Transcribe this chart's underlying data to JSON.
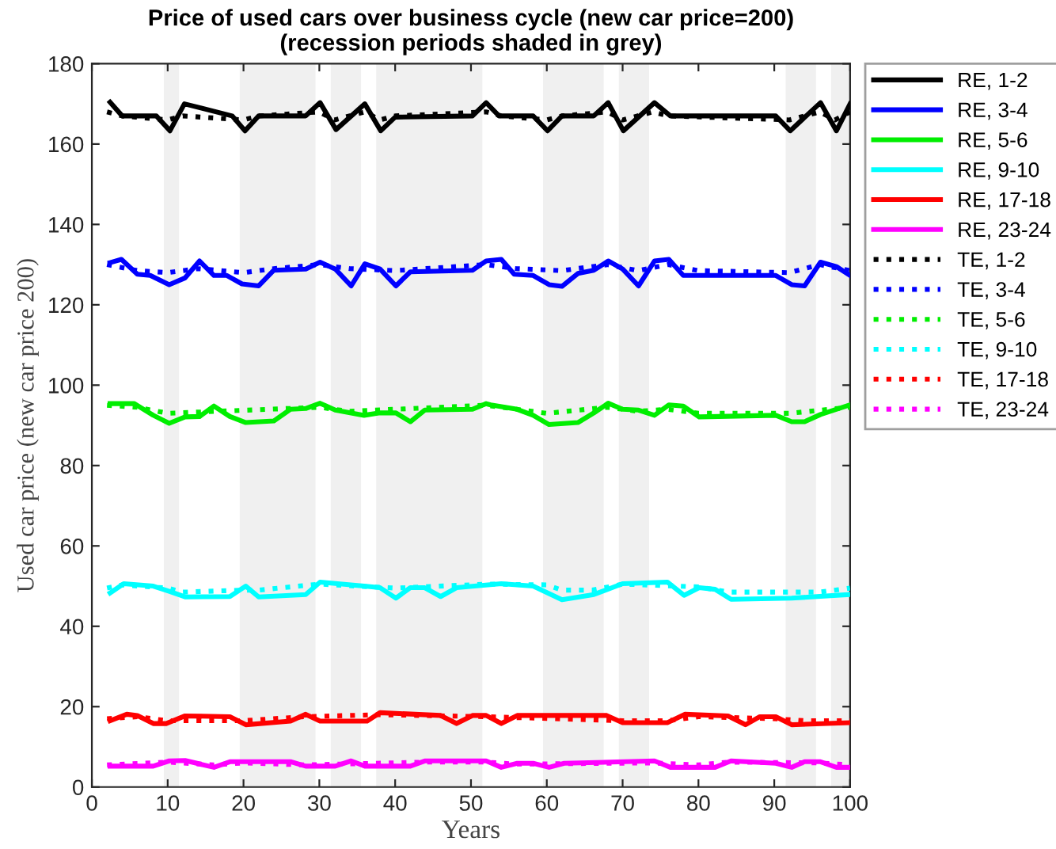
{
  "chart_data": {
    "type": "line",
    "title": "Price of used cars over business cycle (new car price=200)\n(recession periods shaded in grey)",
    "xlabel": "Years",
    "ylabel": "Used car price (new car price 200)",
    "xlim": [
      0,
      100
    ],
    "xticks": [
      0,
      10,
      20,
      30,
      40,
      50,
      60,
      70,
      80,
      90,
      100
    ],
    "ylim": [
      0,
      180
    ],
    "yticks": [
      0,
      20,
      40,
      60,
      80,
      100,
      120,
      140,
      160,
      180
    ],
    "grid": false,
    "legend": "top right",
    "marker": "none",
    "bands": [
      {
        "axis": "x",
        "from": 9.5,
        "to": 11.5,
        "color": "#f0f0f0"
      },
      {
        "axis": "x",
        "from": 19.5,
        "to": 29.5,
        "color": "#f0f0f0"
      },
      {
        "axis": "x",
        "from": 31.5,
        "to": 35.5,
        "color": "#f0f0f0"
      },
      {
        "axis": "x",
        "from": 37.5,
        "to": 51.5,
        "color": "#f0f0f0"
      },
      {
        "axis": "x",
        "from": 59.5,
        "to": 67.5,
        "color": "#f0f0f0"
      },
      {
        "axis": "x",
        "from": 69.5,
        "to": 73.5,
        "color": "#f0f0f0"
      },
      {
        "axis": "x",
        "from": 91.5,
        "to": 95.5,
        "color": "#f0f0f0"
      },
      {
        "axis": "x",
        "from": 97.5,
        "to": 100,
        "color": "#f0f0f0"
      }
    ],
    "series": [
      {
        "name": "RE, 1-2",
        "color": "#000000",
        "line_style": "solid",
        "x": [
          2.4,
          4,
          8.5,
          10.3,
          12.2,
          18.5,
          20.2,
          22,
          28.2,
          30.1,
          32.2,
          36,
          38.1,
          40,
          50.2,
          52,
          53.7,
          58.2,
          60.1,
          62,
          66.2,
          68.1,
          70.1,
          74.2,
          76.3,
          90.2,
          92.1,
          96.1,
          98.2,
          100
        ],
        "values": [
          170.4,
          167,
          167,
          163.3,
          170,
          167,
          163.3,
          167,
          167,
          170.3,
          163.6,
          170,
          163.3,
          166.7,
          167,
          170.3,
          167,
          167,
          163.3,
          167,
          167,
          170.3,
          163.3,
          170.3,
          167,
          167,
          163.3,
          170.3,
          163.3,
          170
        ]
      },
      {
        "name": "RE, 3-4",
        "color": "#0000ff",
        "line_style": "solid",
        "x": [
          2.4,
          3.9,
          6,
          7.7,
          10.2,
          12.3,
          14.2,
          16.1,
          17.8,
          19.8,
          22,
          24,
          28.2,
          30.1,
          32.1,
          34.2,
          36,
          38,
          40.1,
          42,
          50.2,
          52,
          54,
          55.7,
          58.2,
          60.3,
          62,
          64.1,
          66.2,
          68.1,
          70,
          72.1,
          74.2,
          76.1,
          78,
          90.2,
          92.3,
          94,
          96.1,
          98.2,
          100
        ],
        "values": [
          130.5,
          131.3,
          127.6,
          127.3,
          125,
          126.7,
          130.9,
          127.3,
          127.3,
          125.2,
          124.7,
          128.6,
          128.9,
          130.6,
          128.9,
          124.7,
          130.2,
          128.9,
          124.7,
          128.2,
          128.6,
          130.9,
          131.3,
          127.6,
          127.3,
          125,
          124.6,
          127.8,
          128.6,
          130.9,
          128.9,
          124.7,
          130.9,
          131.3,
          127.3,
          127.3,
          125,
          124.7,
          130.6,
          129.5,
          127.3
        ]
      },
      {
        "name": "RE, 5-6",
        "color": "#00ee00",
        "line_style": "solid",
        "x": [
          2.4,
          5.6,
          8.1,
          10.2,
          12.3,
          14.2,
          16.1,
          18.2,
          20.3,
          24,
          26.2,
          28.2,
          30.1,
          32.1,
          35.9,
          38,
          40.1,
          42,
          43.9,
          50.2,
          52,
          52.6,
          56.1,
          58.2,
          60.3,
          64.1,
          66.2,
          68.1,
          70,
          72.1,
          74.2,
          76.1,
          78,
          80.1,
          90.2,
          92.3,
          94,
          96.1,
          100
        ],
        "values": [
          95.4,
          95.4,
          92.5,
          90.5,
          92.1,
          92.2,
          94.8,
          92.2,
          90.7,
          91.1,
          94,
          94.2,
          95.5,
          93.8,
          92.5,
          93.1,
          93.1,
          90.9,
          93.8,
          94,
          95.4,
          95.1,
          94,
          92.5,
          90.2,
          90.7,
          93.1,
          95.5,
          94,
          93.8,
          92.5,
          95.1,
          94.8,
          92.1,
          92.5,
          90.9,
          90.9,
          92.7,
          95.1
        ]
      },
      {
        "name": "RE, 9-10",
        "color": "#00ffff",
        "line_style": "solid",
        "x": [
          2.4,
          4.2,
          8.1,
          10.2,
          12.3,
          18.2,
          20.3,
          22,
          28.2,
          30.1,
          35.9,
          38,
          40.1,
          42,
          43.9,
          46,
          48.1,
          54,
          58.2,
          62,
          66.2,
          70,
          75.9,
          78.1,
          80.1,
          82.2,
          84.3,
          92.3,
          100
        ],
        "values": [
          48.3,
          50.6,
          50,
          48.7,
          47.3,
          47.4,
          50,
          47.3,
          47.9,
          51,
          50,
          49.6,
          47,
          49.6,
          49.6,
          47.4,
          49.6,
          50.6,
          50,
          46.6,
          47.9,
          50.6,
          51,
          47.7,
          49.6,
          49.2,
          46.7,
          47,
          47.9
        ]
      },
      {
        "name": "RE, 17-18",
        "color": "#ff0000",
        "line_style": "solid",
        "x": [
          2.4,
          4.6,
          6,
          8.1,
          9.8,
          12.3,
          18.2,
          20.3,
          26.2,
          28.2,
          30.1,
          36.3,
          38,
          46,
          48.1,
          50.2,
          52,
          54,
          56.1,
          67.9,
          70,
          75.9,
          78.2,
          83.9,
          86.2,
          88.1,
          90.2,
          92.3,
          100
        ],
        "values": [
          16.5,
          18.1,
          17.8,
          15.8,
          15.8,
          17.7,
          17.5,
          15.5,
          16.4,
          18.1,
          16.4,
          16.4,
          18.5,
          17.8,
          15.8,
          17.8,
          17.8,
          15.8,
          17.8,
          17.8,
          16,
          16,
          18.1,
          17.7,
          15.5,
          17.5,
          17.5,
          15.5,
          16
        ]
      },
      {
        "name": "RE, 23-24",
        "color": "#ff00ff",
        "line_style": "solid",
        "x": [
          2.4,
          8.1,
          10.2,
          12.3,
          16.1,
          18.2,
          26.2,
          28.2,
          32.1,
          34.2,
          36,
          42,
          43.9,
          52,
          54,
          56.1,
          58.2,
          60.3,
          62.3,
          74.2,
          76.3,
          82.2,
          84.3,
          90.2,
          92.3,
          94,
          96.1,
          98.2,
          100
        ],
        "values": [
          5.2,
          5.2,
          6.5,
          6.6,
          4.9,
          6.3,
          6.3,
          5.2,
          5.2,
          6.5,
          5.2,
          5.2,
          6.5,
          6.5,
          4.9,
          5.9,
          5.9,
          4.9,
          5.9,
          6.5,
          4.9,
          4.9,
          6.5,
          5.9,
          4.9,
          6.3,
          6.3,
          4.9,
          4.9
        ]
      },
      {
        "name": "TE, 1-2",
        "color": "#000000",
        "line_style": "dotted",
        "x": [
          2,
          4,
          10,
          12,
          20,
          22,
          30,
          32,
          36,
          38,
          40,
          52,
          54,
          60,
          62,
          68,
          70,
          74,
          76,
          92,
          96,
          98,
          100
        ],
        "values": [
          168,
          167,
          166,
          167,
          166,
          167,
          168,
          166,
          168,
          166,
          167,
          168,
          167,
          166,
          167,
          168,
          166,
          168,
          167,
          166,
          168,
          166,
          168
        ]
      },
      {
        "name": "TE, 3-4",
        "color": "#0000ff",
        "line_style": "dotted",
        "x": [
          2,
          6,
          10,
          14,
          20,
          24,
          30,
          34,
          40,
          52,
          56,
          62,
          68,
          72,
          76,
          80,
          92,
          96,
          100
        ],
        "values": [
          130,
          128.5,
          128,
          129,
          128,
          129,
          130,
          129,
          128.5,
          130,
          129,
          128.5,
          130,
          128.5,
          130,
          128.5,
          128,
          130,
          128.5
        ]
      },
      {
        "name": "TE, 5-6",
        "color": "#00ee00",
        "line_style": "dotted",
        "x": [
          2,
          6,
          10,
          30,
          34,
          52,
          56,
          60,
          68,
          72,
          76,
          80,
          92,
          100
        ],
        "values": [
          95,
          94.5,
          93,
          94.5,
          93.5,
          95,
          94,
          93,
          94.5,
          93.5,
          94,
          93,
          93,
          94.5
        ]
      },
      {
        "name": "TE, 9-10",
        "color": "#00ffff",
        "line_style": "dotted",
        "x": [
          2,
          4,
          10,
          12,
          20,
          22,
          30,
          40,
          52,
          60,
          62,
          66,
          70,
          80,
          84,
          96,
          100
        ],
        "values": [
          49.5,
          50.3,
          49.5,
          48.5,
          49,
          49,
          50.5,
          49.5,
          50.5,
          50.3,
          49,
          49,
          50.5,
          49.8,
          48.5,
          48.5,
          49.5
        ]
      },
      {
        "name": "TE, 17-18",
        "color": "#ff0000",
        "line_style": "dotted",
        "x": [
          2,
          6,
          10,
          20,
          28,
          38,
          52,
          70,
          76,
          80,
          90,
          94,
          100
        ],
        "values": [
          17,
          17.5,
          16.5,
          16.5,
          17.5,
          18,
          17.5,
          16.5,
          16.5,
          17.5,
          17,
          16.5,
          16.5
        ]
      },
      {
        "name": "TE, 23-24",
        "color": "#ff00ff",
        "line_style": "dotted",
        "x": [
          2,
          10,
          16,
          20,
          28,
          44,
          52,
          56,
          74,
          80,
          84,
          96,
          100
        ],
        "values": [
          5.5,
          6.2,
          5.5,
          6,
          5.5,
          6.2,
          6.2,
          5.7,
          6,
          5.5,
          6.2,
          6,
          5.5
        ]
      }
    ]
  }
}
